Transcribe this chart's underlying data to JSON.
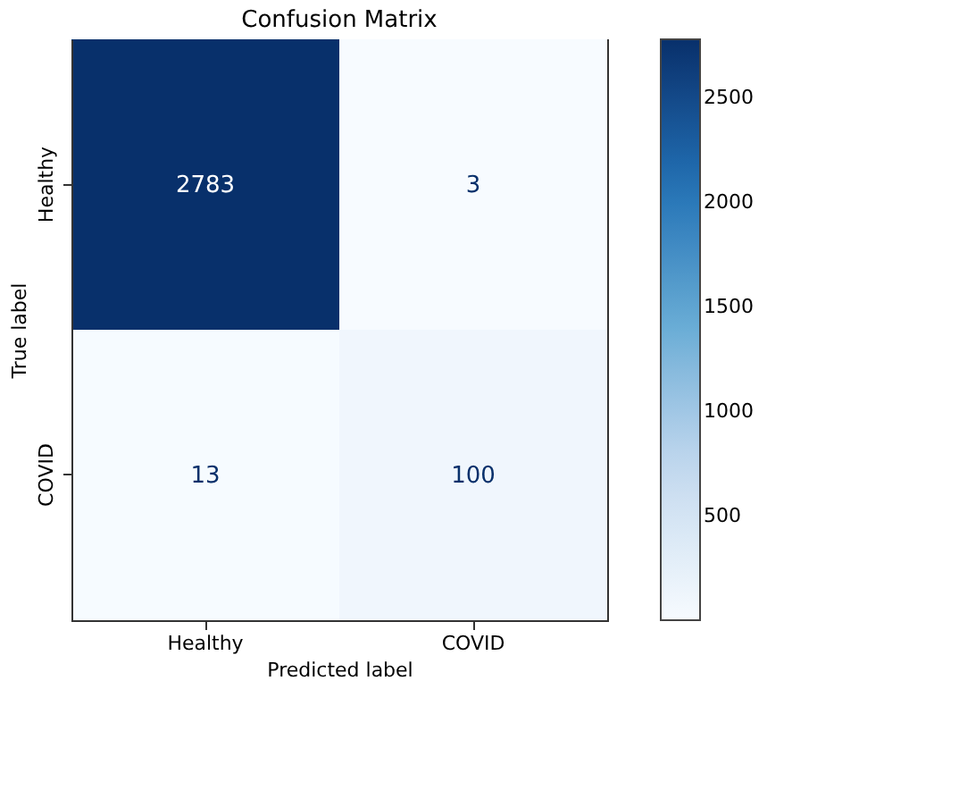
{
  "chart_data": {
    "type": "heatmap",
    "title": "Confusion Matrix",
    "xlabel": "Predicted label",
    "ylabel": "True label",
    "categories": [
      "Healthy",
      "COVID"
    ],
    "y_categories": [
      "Healthy",
      "COVID"
    ],
    "cells": [
      [
        2783,
        3
      ],
      [
        13,
        100
      ]
    ],
    "data_labels": true,
    "clim": [
      3,
      2783
    ],
    "cticks": [
      500,
      1000,
      1500,
      2000,
      2500
    ]
  }
}
